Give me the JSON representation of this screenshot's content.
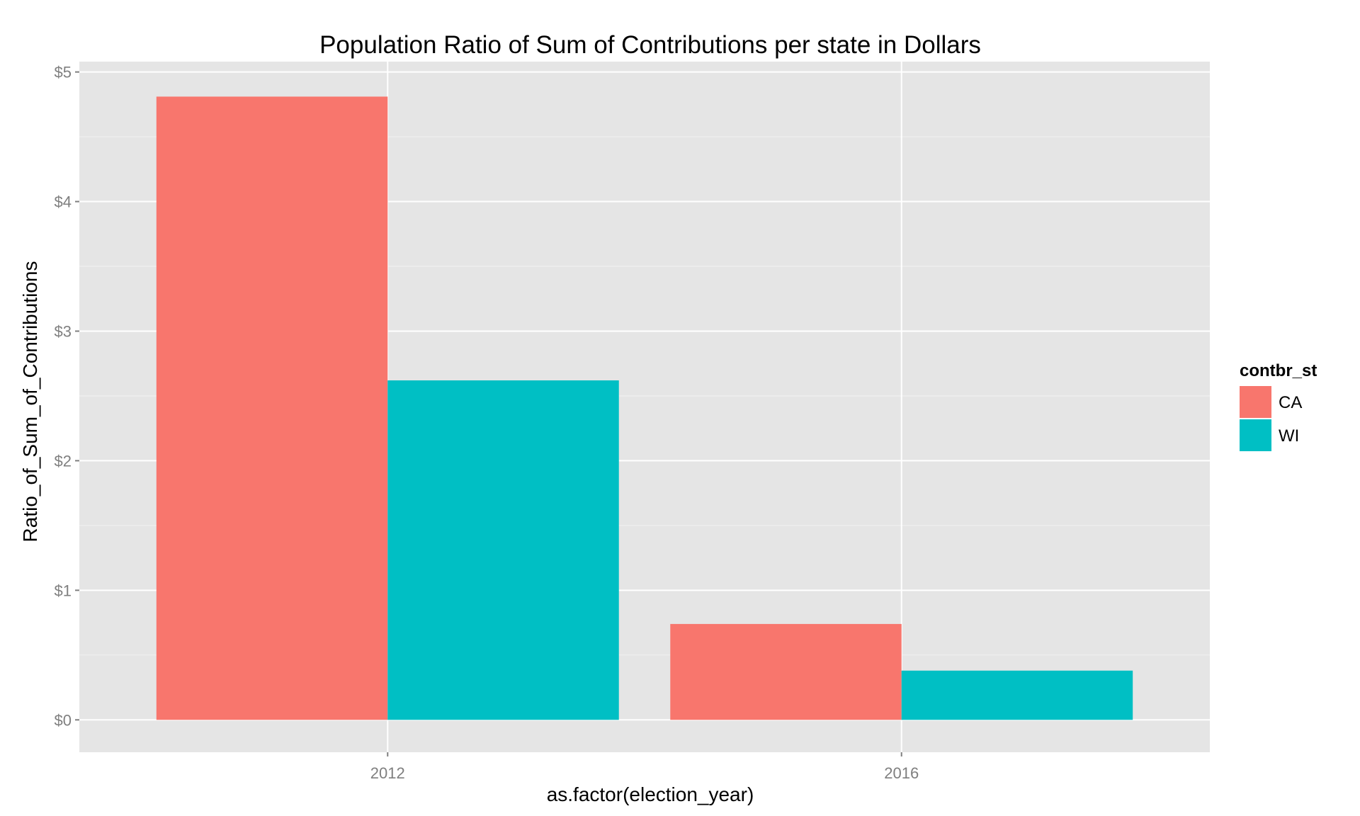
{
  "chart_data": {
    "type": "bar",
    "title": "Population Ratio of Sum of Contributions per state in Dollars",
    "xlabel": "as.factor(election_year)",
    "ylabel": "Ratio_of_Sum_of_Contributions",
    "categories": [
      "2012",
      "2016"
    ],
    "series": [
      {
        "name": "CA",
        "color": "#F8766D",
        "values": [
          4.81,
          0.74
        ]
      },
      {
        "name": "WI",
        "color": "#00BFC4",
        "values": [
          2.62,
          0.38
        ]
      }
    ],
    "ylim": [
      -0.25,
      5.08
    ],
    "y_ticks": [
      0,
      1,
      2,
      3,
      4,
      5
    ],
    "y_tick_labels": [
      "$0",
      "$1",
      "$2",
      "$3",
      "$4",
      "$5"
    ],
    "legend": {
      "title": "contbr_st",
      "position": "right"
    },
    "grid": true,
    "panel_background": "#E5E5E5",
    "grid_color": "#FFFFFF"
  }
}
